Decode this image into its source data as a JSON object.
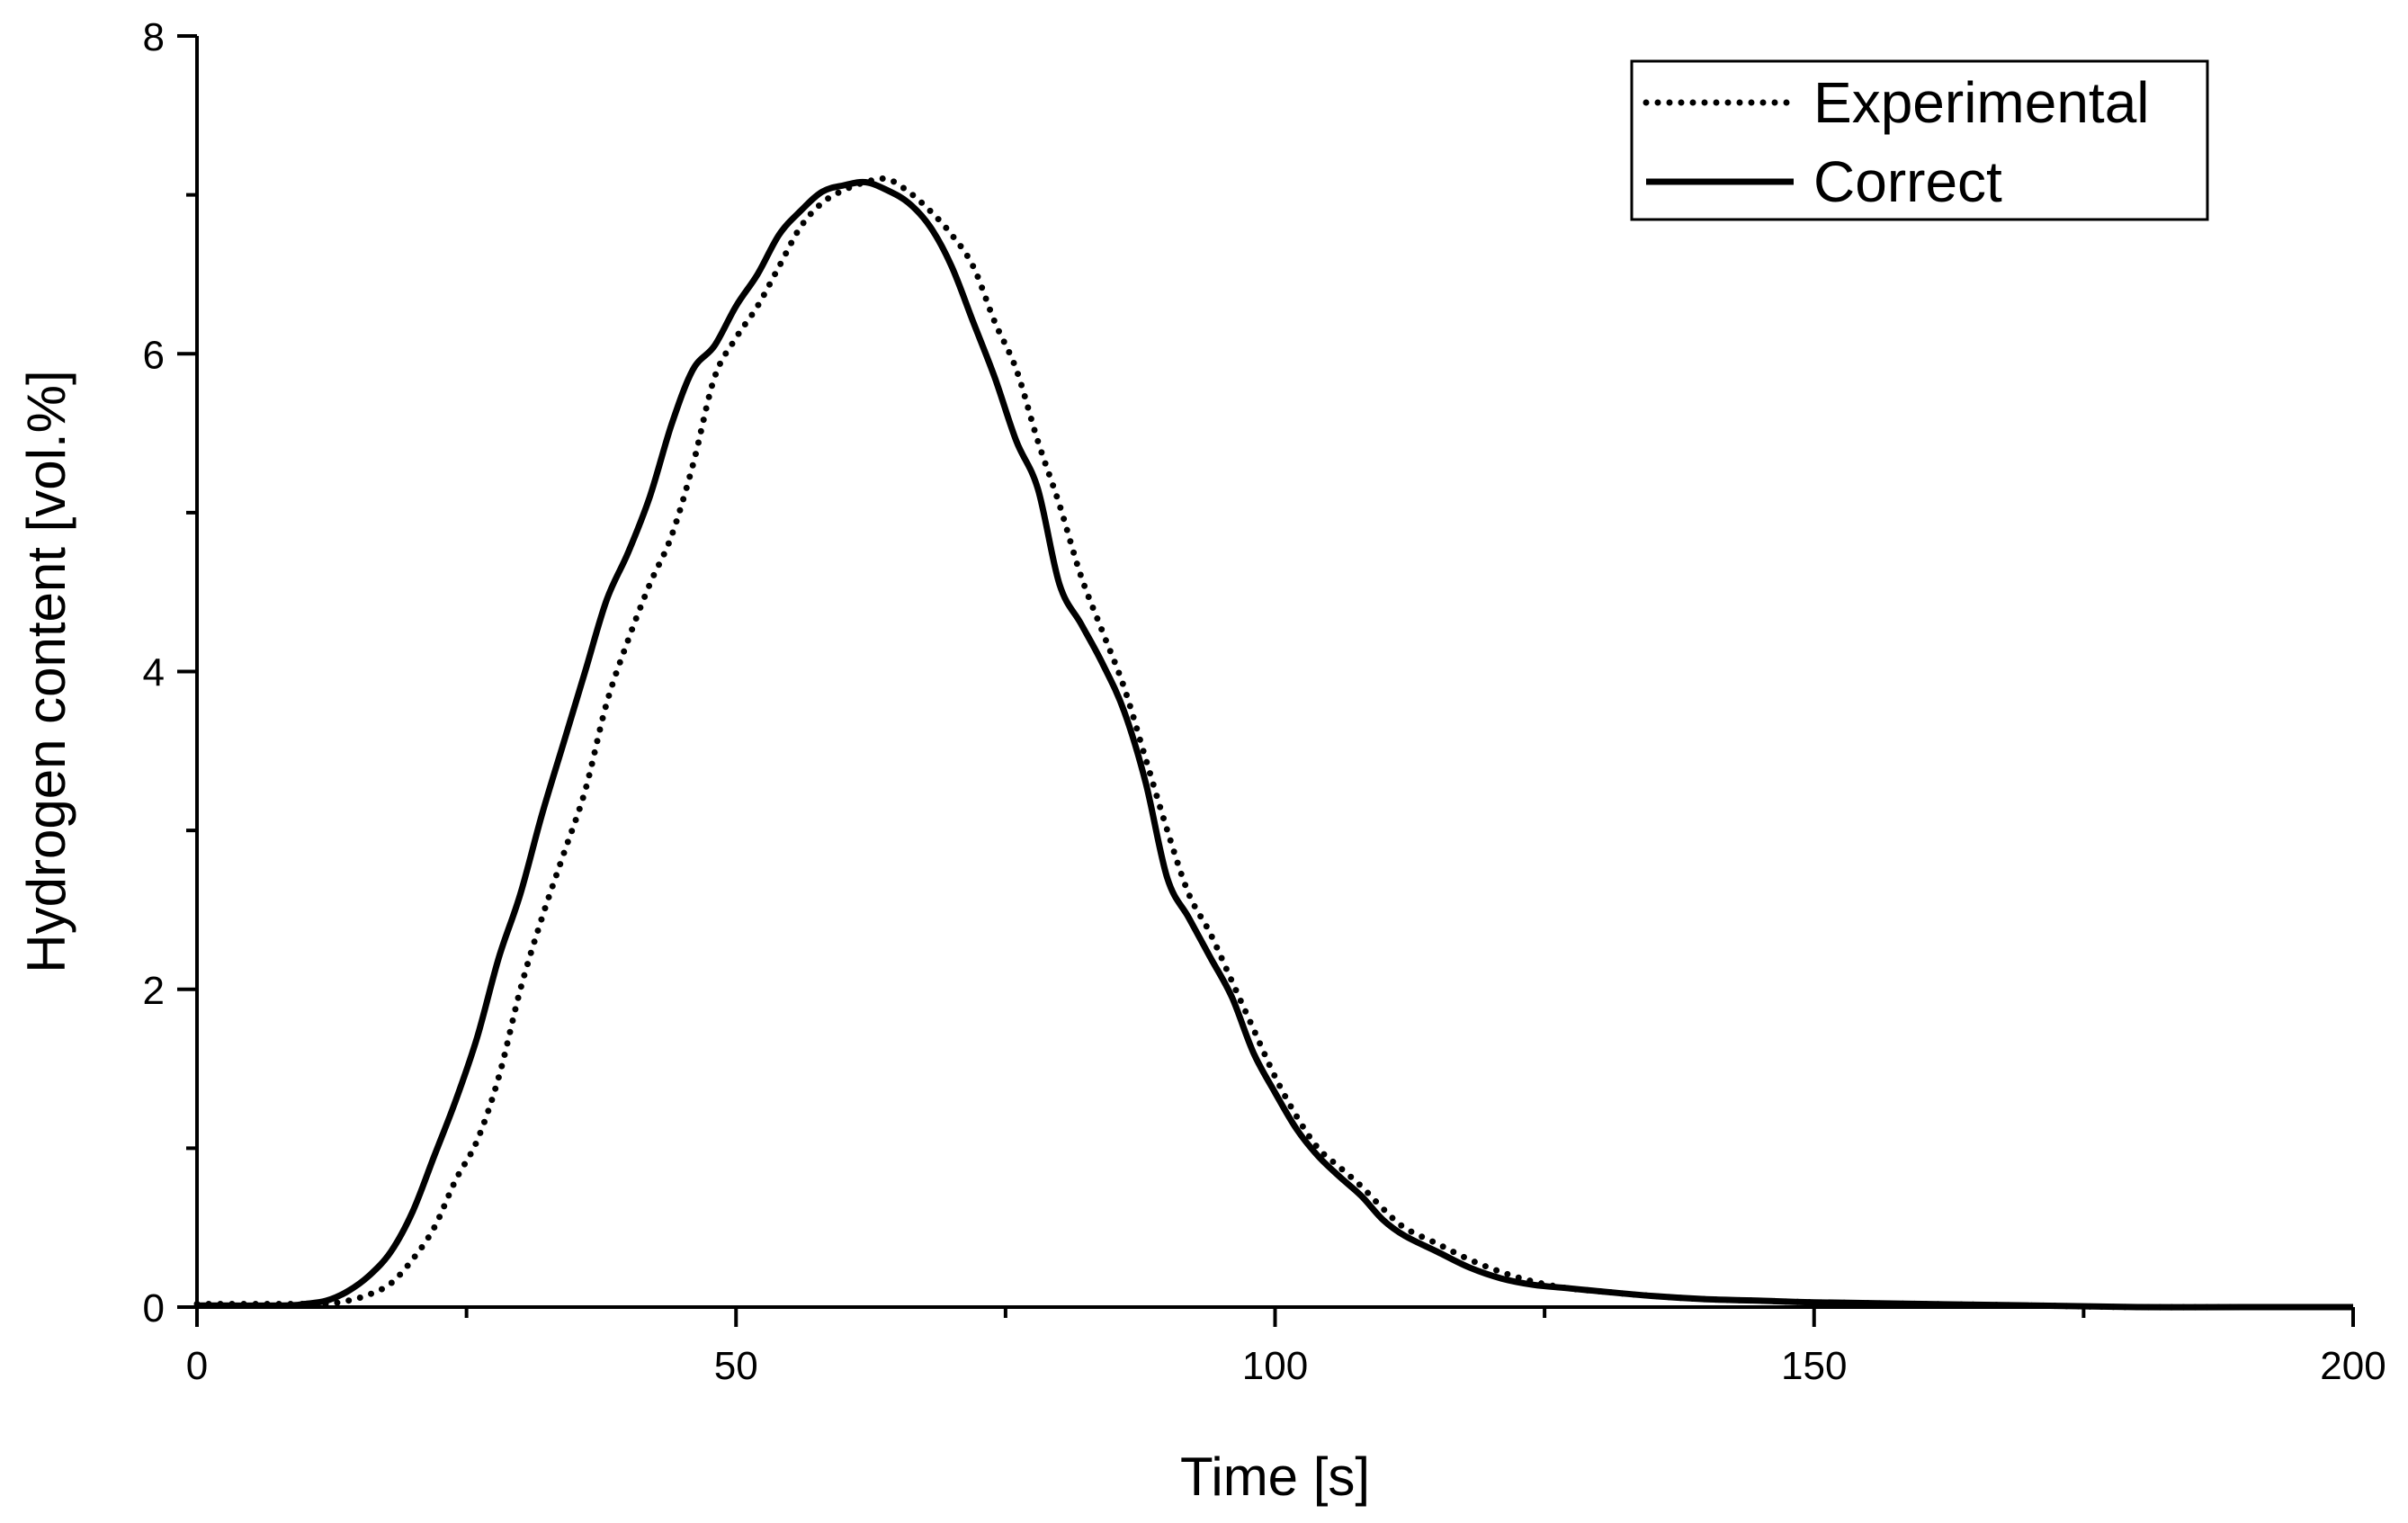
{
  "chart_data": {
    "type": "line",
    "title": "",
    "xlabel": "Time [s]",
    "ylabel": "Hydrogen content [vol.%]",
    "xlim": [
      0,
      200
    ],
    "ylim": [
      0,
      8
    ],
    "x_ticks": [
      0,
      50,
      100,
      150,
      200
    ],
    "y_ticks": [
      0,
      2,
      4,
      6,
      8
    ],
    "x_tick_labels": [
      "0",
      "50",
      "100",
      "150",
      "200"
    ],
    "y_tick_labels": [
      "0",
      "2",
      "4",
      "6",
      "8"
    ],
    "grid": false,
    "legend_position": "top-right",
    "series": [
      {
        "name": "Experimental",
        "style": "dotted",
        "x": [
          0,
          8,
          10,
          12,
          14,
          16,
          18,
          20,
          22,
          24,
          26,
          28,
          30,
          32,
          34,
          36,
          38,
          40,
          42,
          44,
          46,
          48,
          50,
          52,
          54,
          56,
          58,
          60,
          62,
          64,
          66,
          68,
          70,
          72,
          74,
          76,
          78,
          80,
          82,
          84,
          86,
          88,
          90,
          92,
          94,
          96,
          98,
          100,
          102,
          104,
          106,
          108,
          110,
          112,
          115,
          118,
          121,
          124,
          127,
          130,
          135,
          140,
          145,
          150,
          160,
          170,
          180,
          190,
          200
        ],
        "y": [
          0.02,
          0.02,
          0.02,
          0.02,
          0.04,
          0.08,
          0.15,
          0.3,
          0.5,
          0.8,
          1.05,
          1.45,
          2.0,
          2.45,
          2.85,
          3.25,
          3.8,
          4.2,
          4.55,
          4.85,
          5.3,
          5.85,
          6.1,
          6.3,
          6.55,
          6.8,
          6.95,
          7.03,
          7.08,
          7.1,
          7.02,
          6.9,
          6.75,
          6.55,
          6.2,
          5.9,
          5.45,
          5.05,
          4.6,
          4.25,
          3.9,
          3.45,
          3.0,
          2.6,
          2.35,
          2.05,
          1.75,
          1.45,
          1.2,
          1.0,
          0.88,
          0.76,
          0.62,
          0.5,
          0.4,
          0.3,
          0.22,
          0.16,
          0.12,
          0.1,
          0.07,
          0.05,
          0.04,
          0.03,
          0.02,
          0.01,
          0.0,
          0.0,
          0.0
        ]
      },
      {
        "name": "Correct",
        "style": "solid",
        "x": [
          0,
          8,
          10,
          12,
          14,
          16,
          18,
          20,
          22,
          24,
          26,
          28,
          30,
          32,
          34,
          36,
          38,
          40,
          42,
          44,
          46,
          48,
          50,
          52,
          54,
          56,
          58,
          60,
          62,
          64,
          66,
          68,
          70,
          72,
          74,
          76,
          78,
          80,
          82,
          84,
          86,
          88,
          90,
          92,
          94,
          96,
          98,
          100,
          102,
          104,
          106,
          108,
          110,
          112,
          115,
          118,
          121,
          124,
          127,
          130,
          135,
          140,
          145,
          150,
          160,
          170,
          180,
          190,
          200
        ],
        "y": [
          0.01,
          0.01,
          0.02,
          0.04,
          0.1,
          0.2,
          0.35,
          0.6,
          0.95,
          1.3,
          1.7,
          2.2,
          2.6,
          3.1,
          3.55,
          4.0,
          4.45,
          4.75,
          5.1,
          5.55,
          5.9,
          6.05,
          6.3,
          6.5,
          6.75,
          6.9,
          7.02,
          7.06,
          7.08,
          7.03,
          6.95,
          6.8,
          6.55,
          6.2,
          5.85,
          5.45,
          5.15,
          4.55,
          4.3,
          4.05,
          3.75,
          3.3,
          2.7,
          2.45,
          2.2,
          1.95,
          1.6,
          1.35,
          1.12,
          0.95,
          0.82,
          0.7,
          0.55,
          0.45,
          0.35,
          0.25,
          0.18,
          0.14,
          0.12,
          0.1,
          0.07,
          0.05,
          0.04,
          0.03,
          0.02,
          0.01,
          0.0,
          0.0,
          0.0
        ]
      }
    ]
  }
}
